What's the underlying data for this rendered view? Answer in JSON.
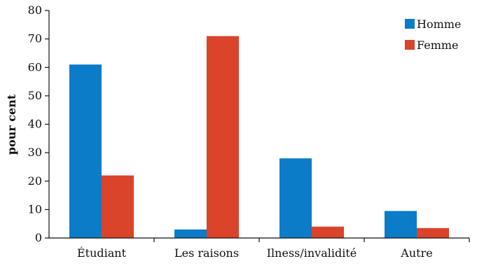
{
  "chart_data": {
    "type": "bar",
    "title": "",
    "xlabel": "",
    "ylabel": "pour cent",
    "ylim": [
      0,
      80
    ],
    "yticks": [
      0,
      10,
      20,
      30,
      40,
      50,
      60,
      70,
      80
    ],
    "grid": false,
    "legend_position": "top-right",
    "categories": [
      "Étudiant",
      "Les raisons",
      "Ilness/invalidité",
      "Autre"
    ],
    "series": [
      {
        "name": "Homme",
        "color": "#0a7cc8",
        "values": [
          61,
          3,
          28,
          9.5
        ]
      },
      {
        "name": "Femme",
        "color": "#d9442a",
        "values": [
          22,
          71,
          4,
          3.5
        ]
      }
    ]
  }
}
